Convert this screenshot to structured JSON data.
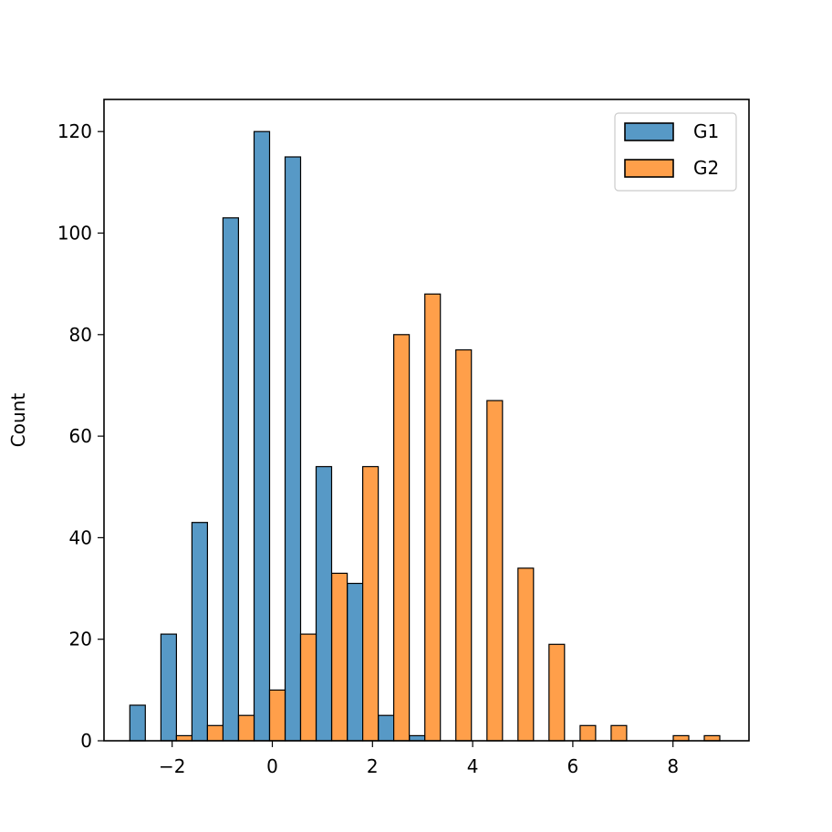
{
  "chart_data": {
    "type": "bar",
    "title": "",
    "xlabel": "",
    "ylabel": "Count",
    "xlim": [
      -3.5,
      9.5
    ],
    "ylim": [
      0,
      126
    ],
    "xticks": [
      -2,
      0,
      2,
      4,
      6,
      8
    ],
    "xtick_labels": [
      "−2",
      "0",
      "2",
      "4",
      "6",
      "8"
    ],
    "yticks": [
      0,
      20,
      40,
      60,
      80,
      100,
      120
    ],
    "ytick_labels": [
      "0",
      "20",
      "40",
      "60",
      "80",
      "100",
      "120"
    ],
    "bin_width": 0.62,
    "grid": false,
    "legend_position": "top-right",
    "series": [
      {
        "name": "G1",
        "color": "#5799c6",
        "bins": [
          {
            "x": -2.69,
            "value": 7
          },
          {
            "x": -2.07,
            "value": 21
          },
          {
            "x": -1.45,
            "value": 43
          },
          {
            "x": -0.83,
            "value": 103
          },
          {
            "x": -0.21,
            "value": 120
          },
          {
            "x": 0.41,
            "value": 115
          },
          {
            "x": 1.03,
            "value": 54
          },
          {
            "x": 1.65,
            "value": 31
          },
          {
            "x": 2.27,
            "value": 5
          },
          {
            "x": 2.89,
            "value": 1
          }
        ]
      },
      {
        "name": "G2",
        "color": "#ff9f4a",
        "bins": [
          {
            "x": -1.76,
            "value": 1
          },
          {
            "x": -1.14,
            "value": 3
          },
          {
            "x": -0.52,
            "value": 5
          },
          {
            "x": 0.1,
            "value": 10
          },
          {
            "x": 0.72,
            "value": 21
          },
          {
            "x": 1.34,
            "value": 33
          },
          {
            "x": 1.96,
            "value": 54
          },
          {
            "x": 2.58,
            "value": 80
          },
          {
            "x": 3.2,
            "value": 88
          },
          {
            "x": 3.82,
            "value": 77
          },
          {
            "x": 4.44,
            "value": 67
          },
          {
            "x": 5.06,
            "value": 34
          },
          {
            "x": 5.68,
            "value": 19
          },
          {
            "x": 6.3,
            "value": 3
          },
          {
            "x": 6.92,
            "value": 3
          },
          {
            "x": 8.16,
            "value": 1
          },
          {
            "x": 8.78,
            "value": 1
          }
        ]
      }
    ]
  }
}
